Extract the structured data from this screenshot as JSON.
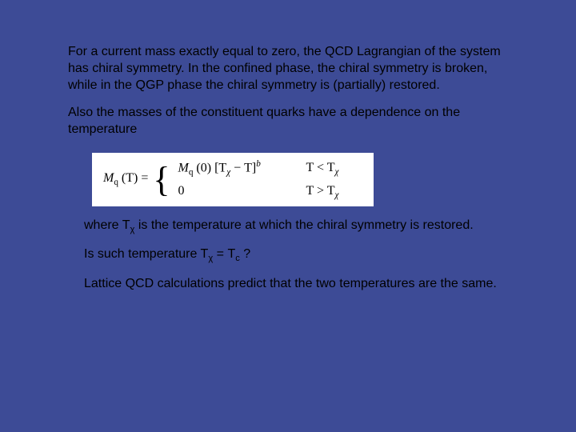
{
  "colors": {
    "background": "#3d4b96",
    "text": "#000000",
    "equation_box_bg": "#ffffff"
  },
  "typography": {
    "body_font": "Comic Sans MS",
    "equation_font": "Georgia",
    "body_fontsize_pt": 16,
    "equation_fontsize_pt": 16
  },
  "paragraphs": {
    "p1": "For a current mass exactly equal to zero, the QCD Lagrangian of the system has chiral symmetry. In the confined phase, the chiral symmetry is broken, while in the QGP phase the chiral symmetry is (partially) restored.",
    "p2": "Also the masses of the constituent quarks have a dependence on the temperature",
    "p3_pre": "where T",
    "p3_sub": "χ",
    "p3_post": "  is the temperature at which the chiral symmetry is restored.",
    "p4_pre": "Is such temperature T",
    "p4_sub1": "χ",
    "p4_mid": " = T",
    "p4_sub2": "c",
    "p4_post": " ?",
    "p5": "Lattice QCD calculations predict that the two temperatures are the same."
  },
  "equation": {
    "lhs_M": "M",
    "lhs_q": "q",
    "lhs_T_open": " (T) = ",
    "case1_M": "M",
    "case1_q": "q",
    "case1_open": " (0) [T",
    "case1_chi": "χ",
    "case1_close": " − T]",
    "case1_exp": "b",
    "case1_cond_pre": "T < T",
    "case1_cond_chi": "χ",
    "case2_expr": "0",
    "case2_cond_pre": "T > T",
    "case2_cond_chi": "χ"
  }
}
